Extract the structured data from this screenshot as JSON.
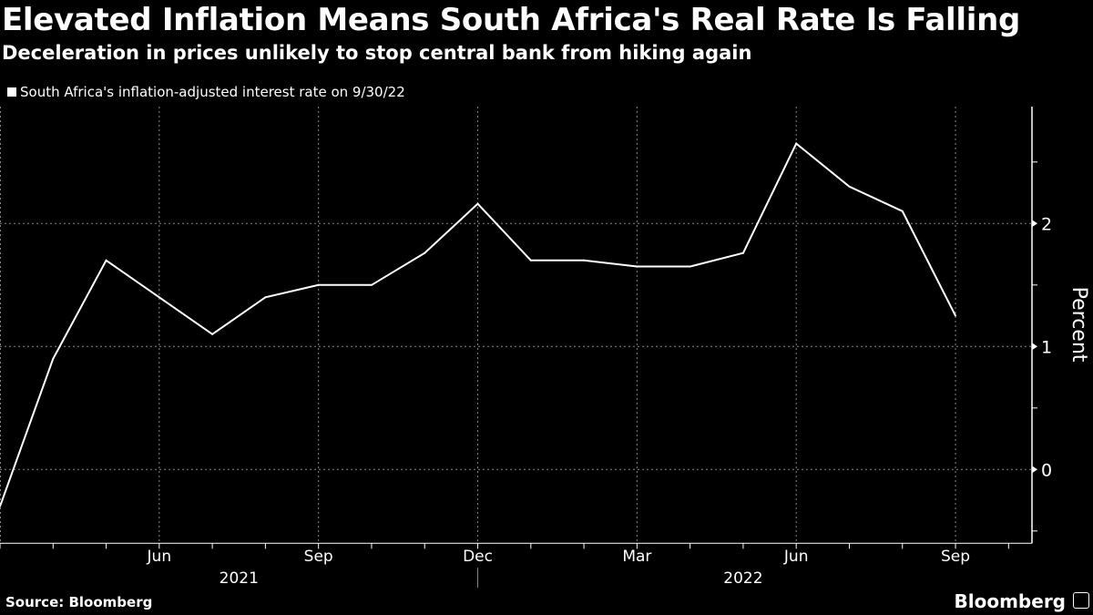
{
  "header": {
    "title": "Elevated Inflation Means South Africa's Real Rate Is Falling",
    "subtitle": "Deceleration in prices unlikely to stop central bank from hiking again"
  },
  "footer": {
    "source": "Source: Bloomberg",
    "brand": "Bloomberg"
  },
  "colors": {
    "background": "#000000",
    "line": "#ffffff",
    "grid": "#888888"
  },
  "chart_data": {
    "type": "line",
    "title": "Elevated Inflation Means South Africa's Real Rate Is Falling",
    "subtitle": "Deceleration in prices unlikely to stop central bank from hiking again",
    "ylabel": "Percent",
    "xlabel": "",
    "ylim": [
      -0.6,
      2.95
    ],
    "y_ticks": [
      0,
      1,
      2
    ],
    "y_axis_side": "right",
    "grid": true,
    "legend_position": "top-left",
    "x_tick_labels": [
      "Jun",
      "Sep",
      "Dec",
      "Mar",
      "Jun",
      "Sep"
    ],
    "x_year_labels": [
      "2021",
      "2022"
    ],
    "series": [
      {
        "name": "South Africa's inflation-adjusted interest rate on 9/30/22",
        "x": [
          "2021-03",
          "2021-04",
          "2021-05",
          "2021-06",
          "2021-07",
          "2021-08",
          "2021-09",
          "2021-10",
          "2021-11",
          "2021-12",
          "2022-01",
          "2022-02",
          "2022-03",
          "2022-04",
          "2022-05",
          "2022-06",
          "2022-07",
          "2022-08",
          "2022-09"
        ],
        "values": [
          -0.3,
          0.9,
          1.7,
          1.4,
          1.1,
          1.4,
          1.5,
          1.5,
          1.76,
          2.16,
          1.7,
          1.7,
          1.65,
          1.65,
          1.76,
          2.65,
          2.3,
          2.1,
          1.25
        ]
      }
    ]
  }
}
